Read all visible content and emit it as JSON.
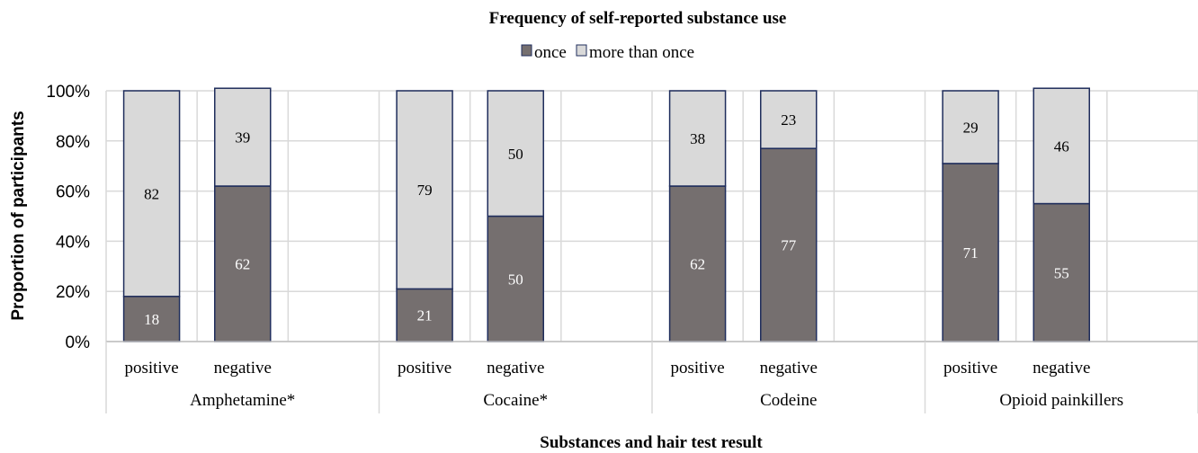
{
  "chart_data": {
    "type": "bar",
    "stacked": true,
    "percent_stacked": true,
    "title": "Frequency of self-reported substance use",
    "xlabel": "Substances and hair test result",
    "ylabel": "Proportion of participants",
    "ylim": [
      0,
      100
    ],
    "yticks": [
      "0%",
      "20%",
      "40%",
      "60%",
      "80%",
      "100%"
    ],
    "grid": true,
    "legend_position": "top-center",
    "groups": [
      "Amphetamine*",
      "Cocaine*",
      "Codeine",
      "Opioid painkillers"
    ],
    "categories": [
      "positive",
      "negative",
      "positive",
      "negative",
      "positive",
      "negative",
      "positive",
      "negative"
    ],
    "series": [
      {
        "name": "once",
        "color": "#756f6f",
        "values": [
          18,
          62,
          21,
          50,
          62,
          77,
          71,
          55
        ]
      },
      {
        "name": "more than once",
        "color": "#d9d9d9",
        "values": [
          82,
          39,
          79,
          50,
          38,
          23,
          29,
          46
        ]
      }
    ],
    "bar_border_color": "#1f2d5c"
  }
}
